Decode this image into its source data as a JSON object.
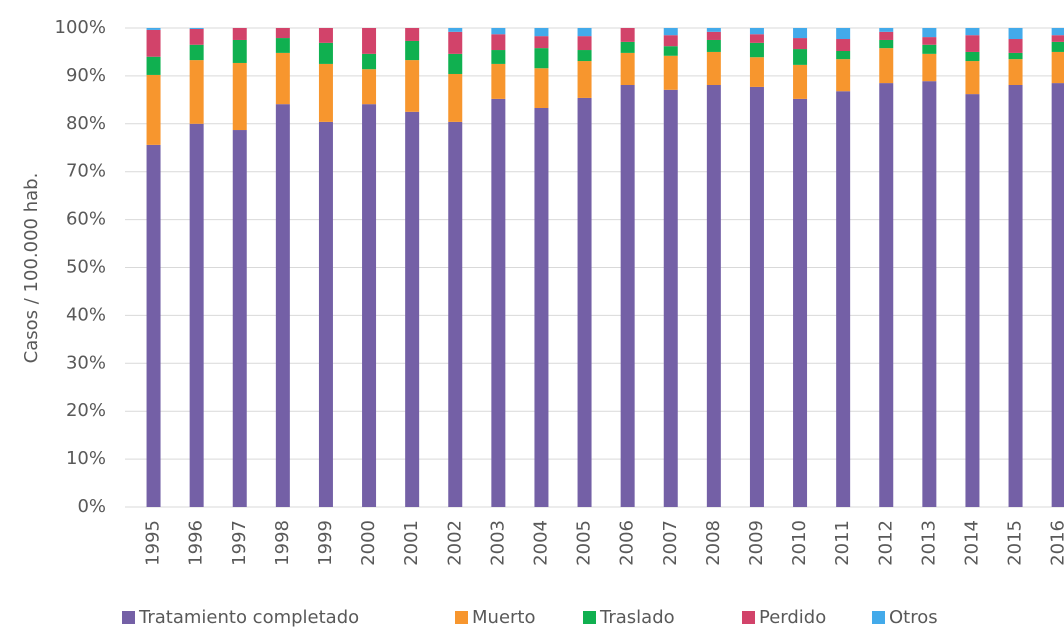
{
  "chart_data": {
    "type": "stacked_bar",
    "y_label": "Casos / 100.000 hab.",
    "categories": [
      "1995",
      "1996",
      "1997",
      "1998",
      "1999",
      "2000",
      "2001",
      "2002",
      "2003",
      "2004",
      "2005",
      "2006",
      "2007",
      "2008",
      "2009",
      "2010",
      "2011",
      "2012",
      "2013",
      "2014",
      "2015",
      "2016"
    ],
    "series": [
      {
        "name": "Tratamiento completado",
        "color": "#7460a6",
        "values": [
          75.6,
          80.0,
          78.7,
          84.1,
          80.4,
          84.1,
          82.5,
          80.4,
          85.2,
          83.3,
          85.4,
          88.1,
          87.1,
          88.1,
          87.7,
          85.2,
          86.8,
          88.5,
          88.9,
          86.2,
          88.1,
          88.5
        ]
      },
      {
        "name": "Muerto",
        "color": "#f7962e",
        "values": [
          14.6,
          13.3,
          14.0,
          10.7,
          12.1,
          7.3,
          10.8,
          10.0,
          7.3,
          8.3,
          7.7,
          6.7,
          7.1,
          6.9,
          6.2,
          7.1,
          6.7,
          7.3,
          5.7,
          6.9,
          5.4,
          6.5
        ]
      },
      {
        "name": "Traslado",
        "color": "#10b050",
        "values": [
          3.8,
          3.2,
          4.8,
          3.1,
          4.4,
          3.2,
          4.0,
          4.2,
          2.9,
          4.2,
          2.3,
          2.3,
          2.0,
          2.5,
          3.0,
          3.3,
          1.7,
          1.7,
          1.9,
          1.9,
          1.3,
          2.1
        ]
      },
      {
        "name": "Perdido",
        "color": "#d2436a",
        "values": [
          5.6,
          3.3,
          2.5,
          2.1,
          3.1,
          5.4,
          2.7,
          4.6,
          3.3,
          2.5,
          2.9,
          2.9,
          2.3,
          1.7,
          1.8,
          2.3,
          2.5,
          1.7,
          1.6,
          3.5,
          2.9,
          1.4
        ]
      },
      {
        "name": "Otros",
        "color": "#43aaea",
        "values": [
          0.4,
          0.2,
          0.0,
          0.0,
          0.0,
          0.0,
          0.0,
          0.8,
          1.3,
          1.7,
          1.7,
          0.0,
          1.5,
          0.8,
          1.3,
          2.1,
          2.3,
          0.8,
          1.9,
          1.5,
          2.3,
          1.5
        ]
      }
    ],
    "ylim": [
      0,
      100
    ],
    "yticks": [
      {
        "value": 0,
        "label": "0%"
      },
      {
        "value": 10,
        "label": "10%"
      },
      {
        "value": 20,
        "label": "20%"
      },
      {
        "value": 30,
        "label": "30%"
      },
      {
        "value": 40,
        "label": "40%"
      },
      {
        "value": 50,
        "label": "50%"
      },
      {
        "value": 60,
        "label": "60%"
      },
      {
        "value": 70,
        "label": "70%"
      },
      {
        "value": 80,
        "label": "80%"
      },
      {
        "value": 90,
        "label": "90%"
      },
      {
        "value": 100,
        "label": "100%"
      }
    ],
    "grid": true,
    "legend": "bottom"
  }
}
